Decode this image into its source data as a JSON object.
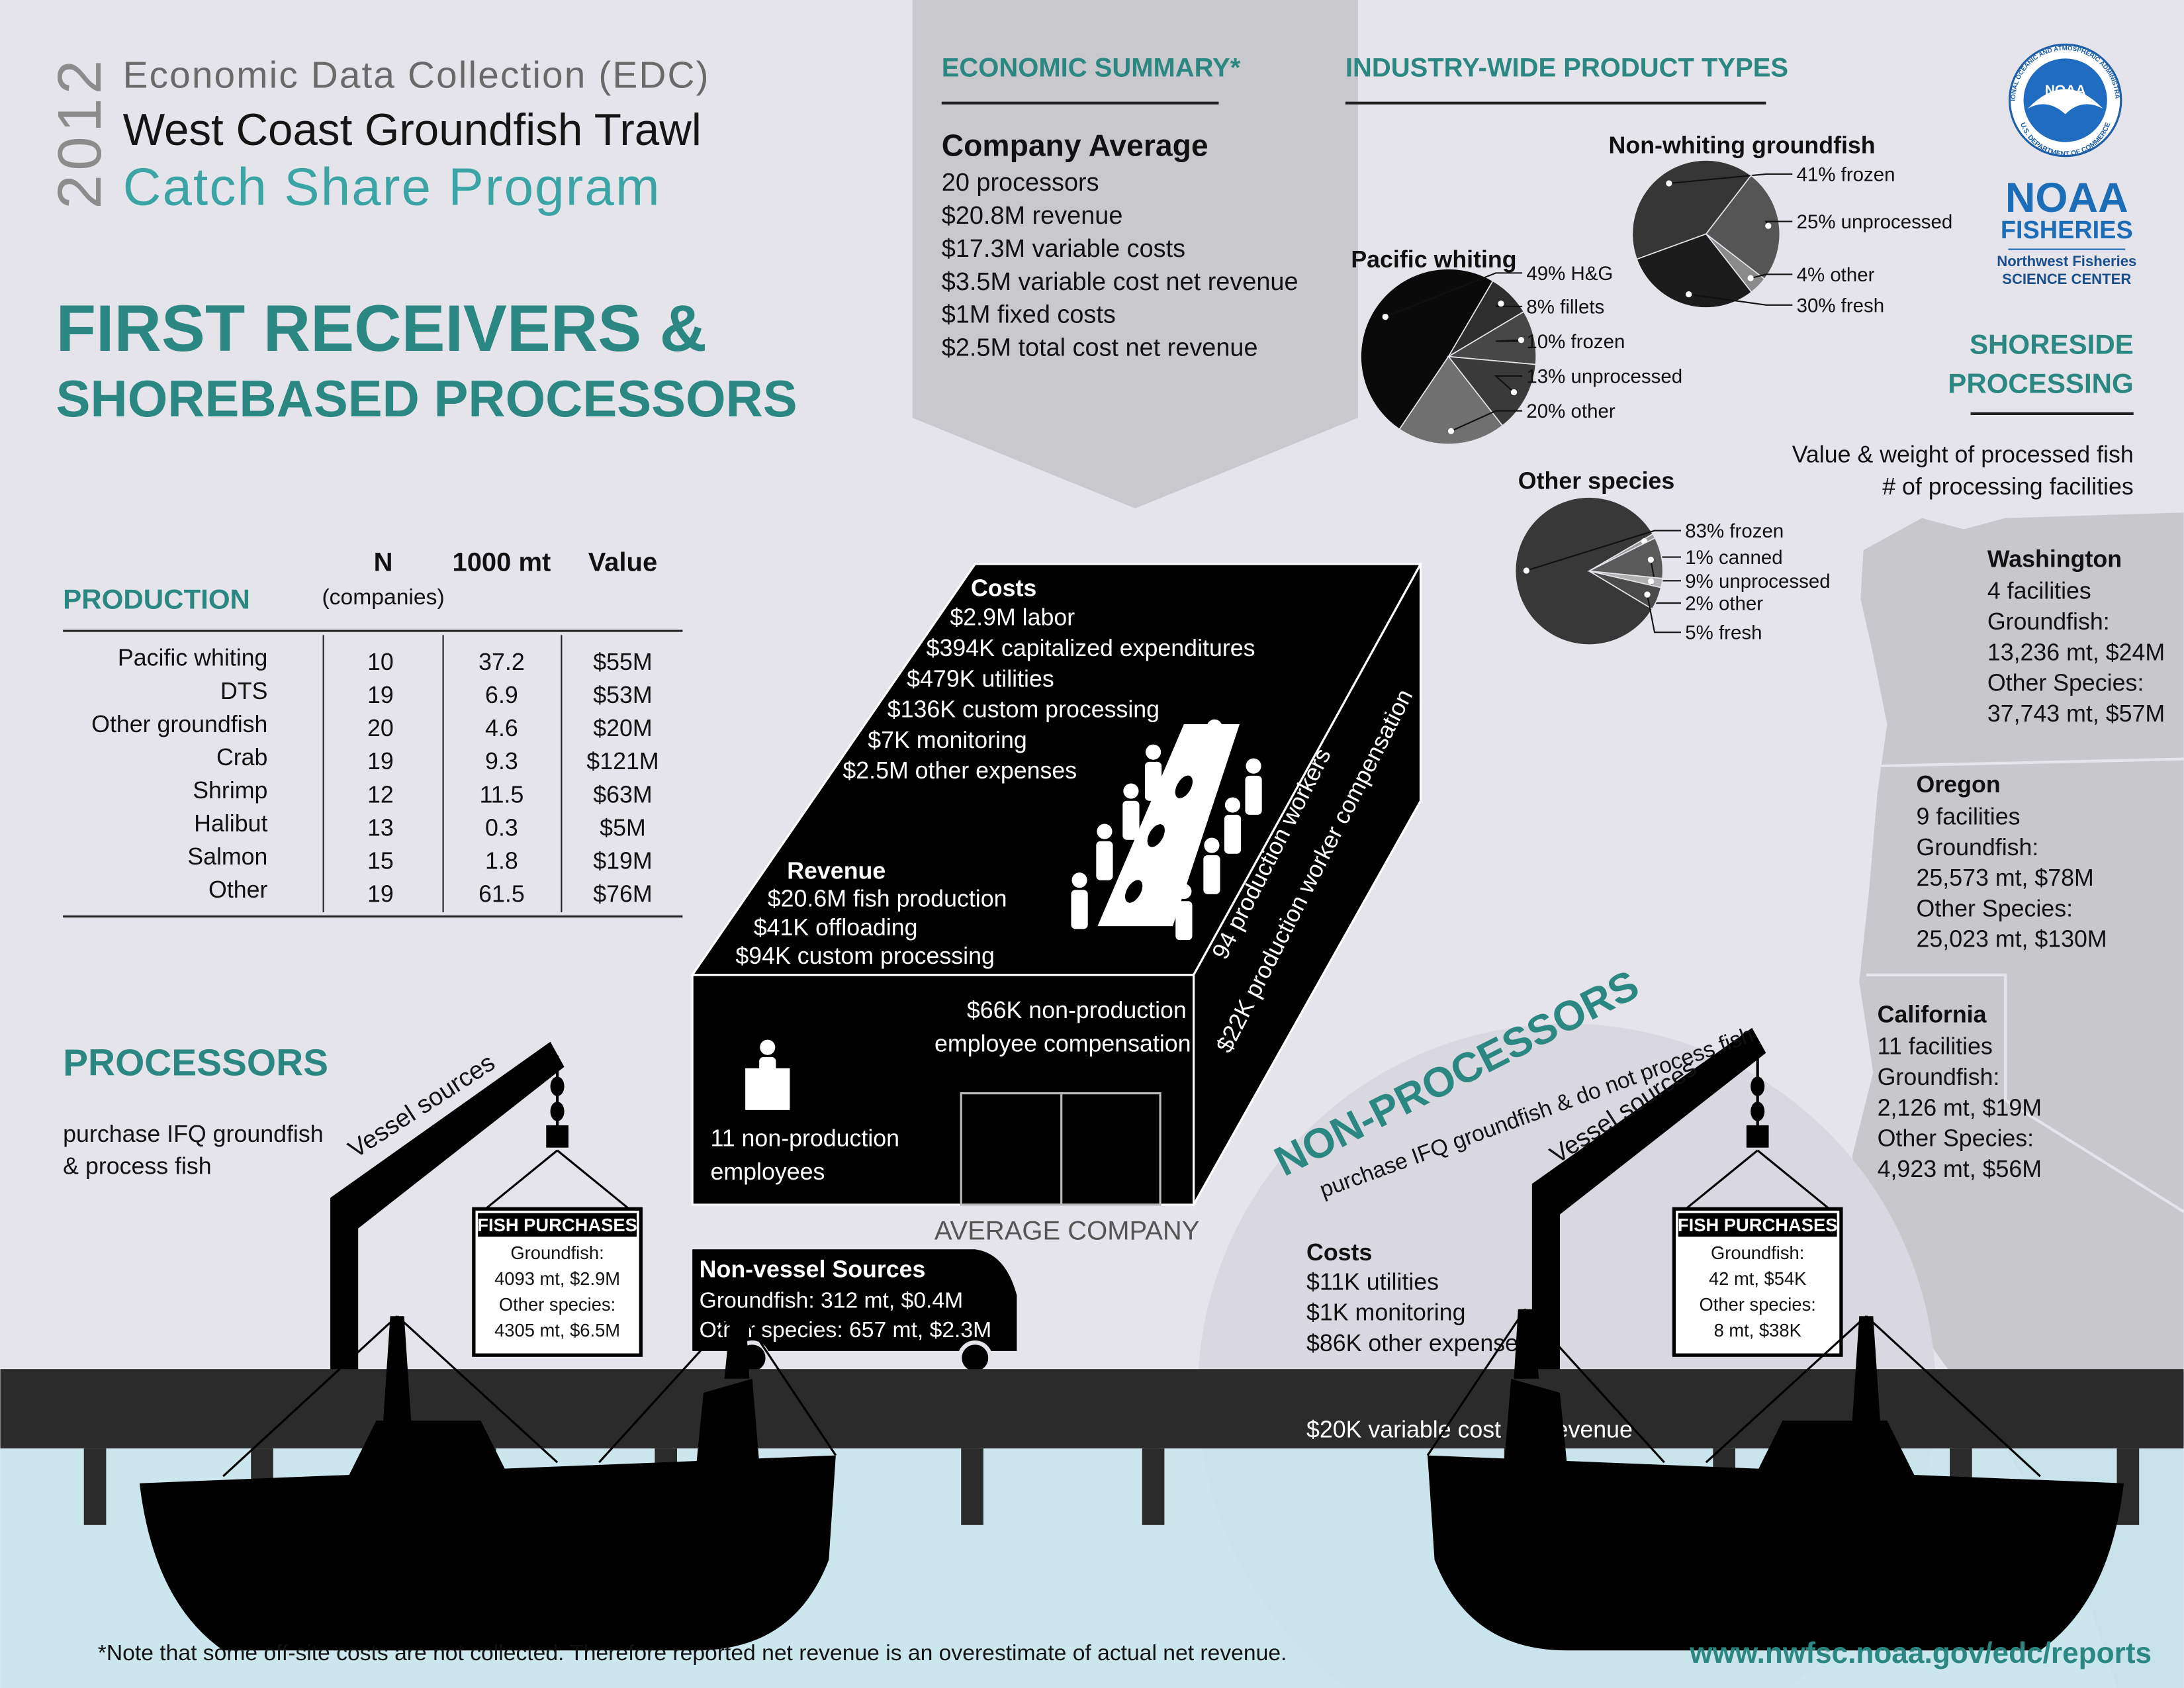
{
  "header": {
    "year": "2012",
    "line1": "Economic Data Collection (EDC)",
    "line2": "West Coast Groundfish Trawl",
    "line3": "Catch Share Program"
  },
  "title": {
    "line1": "FIRST RECEIVERS &",
    "line2": "SHOREBASED PROCESSORS"
  },
  "economic_summary": {
    "heading": "ECONOMIC SUMMARY*",
    "subheading": "Company Average",
    "items": [
      "20 processors",
      "$20.8M revenue",
      "$17.3M variable costs",
      "$3.5M variable cost net revenue",
      "$1M fixed costs",
      "$2.5M total cost net revenue"
    ]
  },
  "product_types": {
    "heading": "INDUSTRY-WIDE PRODUCT TYPES",
    "pies": [
      {
        "type": "pie",
        "title": "Non-whiting groundfish",
        "slices": [
          {
            "value": 41,
            "label": "41% frozen",
            "color": "#363636"
          },
          {
            "value": 25,
            "label": "25% unprocessed",
            "color": "#555555"
          },
          {
            "value": 4,
            "label": "4% other",
            "color": "#8a8a8a"
          },
          {
            "value": 30,
            "label": "30% fresh",
            "color": "#1c1c1c"
          }
        ]
      },
      {
        "type": "pie",
        "title": "Pacific whiting",
        "slices": [
          {
            "value": 49,
            "label": "49% H&G",
            "color": "#0a0a0a"
          },
          {
            "value": 8,
            "label": "8% fillets",
            "color": "#2e2e2e"
          },
          {
            "value": 10,
            "label": "10% frozen",
            "color": "#474747"
          },
          {
            "value": 13,
            "label": "13% unprocessed",
            "color": "#3a3a3a"
          },
          {
            "value": 20,
            "label": "20% other",
            "color": "#707070"
          }
        ]
      },
      {
        "type": "pie",
        "title": "Other species",
        "slices": [
          {
            "value": 83,
            "label": "83% frozen",
            "color": "#383838"
          },
          {
            "value": 1,
            "label": "1% canned",
            "color": "#9a9a9a"
          },
          {
            "value": 9,
            "label": "9% unprocessed",
            "color": "#5a5a5a"
          },
          {
            "value": 2,
            "label": "2% other",
            "color": "#b0b0b0"
          },
          {
            "value": 5,
            "label": "5% fresh",
            "color": "#4a4a4a"
          }
        ]
      }
    ]
  },
  "noaa": {
    "ring_top": "NATIONAL OCEANIC AND ATMOSPHERIC ADMINISTRATION",
    "ring_bottom": "U.S. DEPARTMENT OF COMMERCE",
    "logo": "NOAA",
    "name": "NOAA",
    "sub": "FISHERIES",
    "center_line1": "Northwest Fisheries",
    "center_line2": "SCIENCE CENTER"
  },
  "shoreside": {
    "heading_line1": "SHORESIDE",
    "heading_line2": "PROCESSING",
    "legend_line1": "Value & weight of processed fish",
    "legend_line2": "# of processing facilities",
    "states": [
      {
        "name": "Washington",
        "lines": [
          "4 facilities",
          "Groundfish:",
          "13,236 mt, $24M",
          "Other Species:",
          "37,743 mt, $57M"
        ]
      },
      {
        "name": "Oregon",
        "lines": [
          "9 facilities",
          "Groundfish:",
          "25,573 mt, $78M",
          "Other Species:",
          "25,023 mt, $130M"
        ]
      },
      {
        "name": "California",
        "lines": [
          "11 facilities",
          "Groundfish:",
          "2,126 mt, $19M",
          "Other Species:",
          "4,923 mt,  $56M"
        ]
      }
    ]
  },
  "production": {
    "heading": "PRODUCTION",
    "columns": [
      "N",
      "1000 mt",
      "Value"
    ],
    "column_note": "(companies)",
    "rows": [
      [
        "Pacific whiting",
        10,
        37.2,
        "$55M"
      ],
      [
        "DTS",
        19,
        6.9,
        "$53M"
      ],
      [
        "Other groundfish",
        20,
        4.6,
        "$20M"
      ],
      [
        "Crab",
        19,
        9.3,
        "$121M"
      ],
      [
        "Shrimp",
        12,
        11.5,
        "$63M"
      ],
      [
        "Halibut",
        13,
        0.3,
        "$5M"
      ],
      [
        "Salmon",
        15,
        1.8,
        "$19M"
      ],
      [
        "Other",
        19,
        61.5,
        "$76M"
      ]
    ]
  },
  "processors": {
    "heading": "PROCESSORS",
    "desc_line1": "purchase IFQ groundfish",
    "desc_line2": "& process fish",
    "crane_label": "Vessel sources",
    "fish_purchases": {
      "title": "FISH PURCHASES",
      "lines": [
        "Groundfish:",
        "4093 mt, $2.9M",
        "Other species:",
        "4305 mt, $6.5M"
      ]
    }
  },
  "average_company": {
    "label": "AVERAGE COMPANY",
    "costs_heading": "Costs",
    "costs": [
      "$2.9M labor",
      "$394K capitalized expenditures",
      "$479K utilities",
      "$136K custom processing",
      "$7K monitoring",
      "$2.5M other expenses"
    ],
    "revenue_heading": "Revenue",
    "revenue": [
      "$20.6M fish production",
      "$41K offloading",
      "$94K custom processing"
    ],
    "workers": "94 production workers",
    "worker_comp": "$22K production worker compensation",
    "nonprod_comp_line1": "$66K non-production",
    "nonprod_comp_line2": "employee compensation",
    "nonprod_emp_line1": "11 non-production",
    "nonprod_emp_line2": "employees"
  },
  "non_vessel": {
    "title": "Non-vessel Sources",
    "lines": [
      "Groundfish: 312 mt, $0.4M",
      "Other species:  657 mt, $2.3M"
    ]
  },
  "non_processors": {
    "heading": "NON-PROCESSORS",
    "desc": "purchase IFQ groundfish & do not process fish",
    "crane_label": "Vessel sources",
    "costs_heading": "Costs",
    "costs": [
      "$11K utilities",
      "$1K monitoring",
      "$86K other expenses"
    ],
    "net_revenue": "$20K variable cost net revenue",
    "fish_purchases": {
      "title": "FISH PURCHASES",
      "lines": [
        "Groundfish:",
        "42 mt, $54K",
        "Other species:",
        "8 mt, $38K"
      ]
    }
  },
  "footer": {
    "note": "*Note that some off-site costs are not collected. Therefore reported net revenue is an overestimate of actual net revenue.",
    "url": "www.nwfsc.noaa.gov/edc/reports"
  }
}
